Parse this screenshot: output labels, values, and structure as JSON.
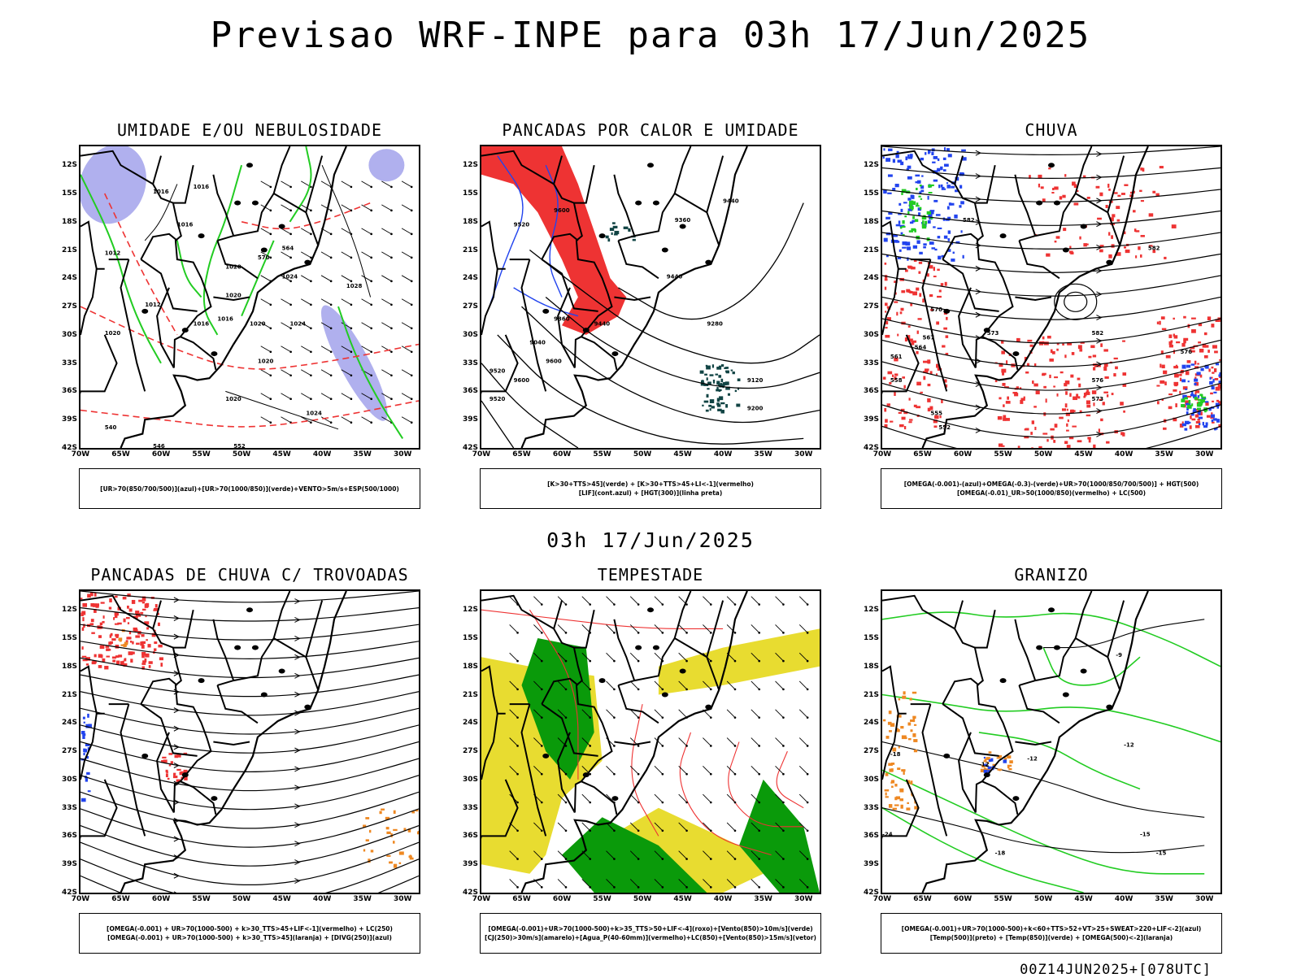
{
  "header": {
    "title": "Previsao WRF-INPE  para 03h 17/Jun/2025"
  },
  "mid_title": "03h 17/Jun/2025",
  "footer": "00Z14JUN2025+[078UTC]",
  "axes": {
    "lat": [
      "12S",
      "15S",
      "18S",
      "21S",
      "24S",
      "27S",
      "30S",
      "33S",
      "36S",
      "39S",
      "42S"
    ],
    "lon": [
      "70W",
      "65W",
      "60W",
      "55W",
      "50W",
      "45W",
      "40W",
      "35W",
      "30W"
    ]
  },
  "panels": [
    {
      "title": "UMIDADE E/OU NEBULOSIDADE",
      "legend": [
        "[UR>70(850/700/500)](azul)+[UR>70(1000/850)](verde)+VENTO>5m/s+ESP(500/1000)"
      ],
      "contour_labels": [
        "1016",
        "1016",
        "1020",
        "1016",
        "1020",
        "1024",
        "1012",
        "1016",
        "1020",
        "1024",
        "1028",
        "1024",
        "1020",
        "1020",
        "1016",
        "1012",
        "1020",
        "540",
        "546",
        "552",
        "570",
        "564"
      ]
    },
    {
      "title": "PANCADAS POR CALOR E UMIDADE",
      "legend": [
        "[K>30+TTS>45](verde) + [K>30+TTS>45+LI<-1](vermelho)",
        "[LIF](cont.azul) + [HGT(300)](linha preta)"
      ],
      "contour_labels": [
        "9600",
        "9520",
        "9440",
        "9360",
        "9280",
        "9200",
        "9120",
        "9040",
        "9600",
        "9600",
        "9520",
        "9520",
        "9440",
        "9360",
        "9440"
      ]
    },
    {
      "title": "CHUVA",
      "legend": [
        "[OMEGA(-0.001)-(azul)+OMEGA(-0.3)-(verde)+UR>70(1000/850/700/500)] + HGT(500)",
        "[OMEGA(-0.01)_UR>50(1000/850)(vermelho) + LC(500)"
      ],
      "contour_labels": [
        "582",
        "582",
        "576",
        "570",
        "573",
        "567",
        "564",
        "561",
        "558",
        "555",
        "552",
        "582",
        "576",
        "573"
      ]
    },
    {
      "title": "PANCADAS DE CHUVA C/ TROVOADAS",
      "legend": [
        "[OMEGA(-0.001) + UR>70(1000-500) + k>30_TTS>45+LIF<-1](vermelho) + LC(250)",
        "[OMEGA(-0.001) + UR>70(1000-500) + k>30_TTS>45](laranja) + [DIVG(250)](azul)"
      ],
      "contour_labels": []
    },
    {
      "title": "TEMPESTADE",
      "legend": [
        "[OMEGA(-0.001)+UR>70(1000-500)+k>35_TTS>50+LIF<-4](roxo)+[Vento(850)>10m/s](verde)",
        "[CJ(250)>30m/s](amarelo)+[Agua_P(40-60mm)](vermelho)+LC(850)+[Vento(850)>15m/s](vetor)"
      ],
      "contour_labels": []
    },
    {
      "title": "GRANIZO",
      "legend": [
        "[OMEGA(-0.001)+UR>70(1000-500)+k<60+TTS>52+VT>25+SWEAT>220+LIF<-2](azul)",
        "[Temp(500)](preto) + [Temp(850)](verde) + [OMEGA(500)<-2](laranja)"
      ],
      "contour_labels": [
        "-12",
        "-12",
        "-9",
        "-12",
        "-15",
        "-15",
        "-18",
        "-24",
        "-18"
      ]
    }
  ],
  "colors": {
    "red": "#ee3333",
    "blue": "#2244ee",
    "green": "#22cc22",
    "lavender": "#b0b0ee",
    "yellow": "#e8dc30",
    "dkgreen": "#0a9a0a",
    "orange": "#ee8822",
    "teal": "#114444"
  }
}
